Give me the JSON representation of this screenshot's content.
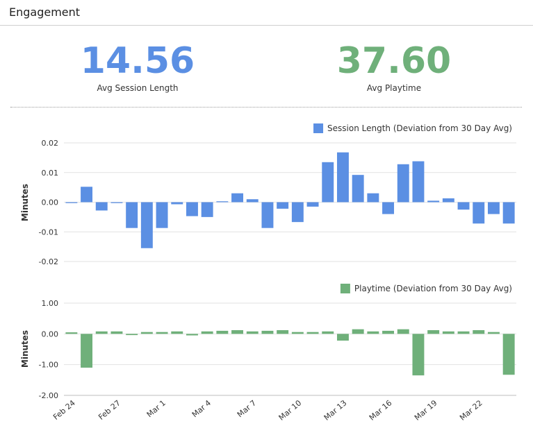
{
  "header": {
    "title": "Engagement"
  },
  "kpis": [
    {
      "value": "14.56",
      "label": "Avg Session Length",
      "color": "#5b8fe3"
    },
    {
      "value": "37.60",
      "label": "Avg Playtime",
      "color": "#6fb07a"
    }
  ],
  "chart_data": [
    {
      "type": "bar",
      "legend": "Session Length (Deviation from 30 Day Avg)",
      "color": "#5b8fe3",
      "ylabel": "Minutes",
      "ylim": [
        -0.02,
        0.02
      ],
      "yticks": [
        "0.02",
        "0.01",
        "0.00",
        "-0.01",
        "-0.02"
      ],
      "values": [
        -0.0003,
        0.0052,
        -0.0028,
        -0.0003,
        -0.0087,
        -0.0155,
        -0.0087,
        -0.0007,
        -0.0047,
        -0.005,
        0.0003,
        0.003,
        0.001,
        -0.0087,
        -0.0022,
        -0.0067,
        -0.0015,
        0.0135,
        0.0168,
        0.0092,
        0.003,
        -0.004,
        0.0128,
        0.0138,
        0.0005,
        0.0013,
        -0.0025,
        -0.0072,
        -0.004,
        -0.0072
      ],
      "grid": true,
      "legend_position": "top-right"
    },
    {
      "type": "bar",
      "legend": "Playtime (Deviation from 30 Day Avg)",
      "color": "#6fb07a",
      "ylabel": "Minutes",
      "ylim": [
        -2.0,
        1.0
      ],
      "yticks": [
        "1.00",
        "0.00",
        "-1.00",
        "-2.00"
      ],
      "values": [
        0.05,
        -1.1,
        0.08,
        0.08,
        -0.04,
        0.06,
        0.06,
        0.08,
        -0.05,
        0.08,
        0.1,
        0.12,
        0.08,
        0.1,
        0.12,
        0.06,
        0.06,
        0.08,
        -0.22,
        0.15,
        0.08,
        0.1,
        0.15,
        -1.35,
        0.12,
        0.08,
        0.08,
        0.12,
        0.06,
        -1.33
      ],
      "grid": true,
      "legend_position": "top-right"
    }
  ],
  "x_labels": [
    "Feb 24",
    "Feb 27",
    "Mar 1",
    "Mar 4",
    "Mar 7",
    "Mar 10",
    "Mar 13",
    "Mar 16",
    "Mar 19",
    "Mar 22"
  ],
  "x_label_every": 3
}
